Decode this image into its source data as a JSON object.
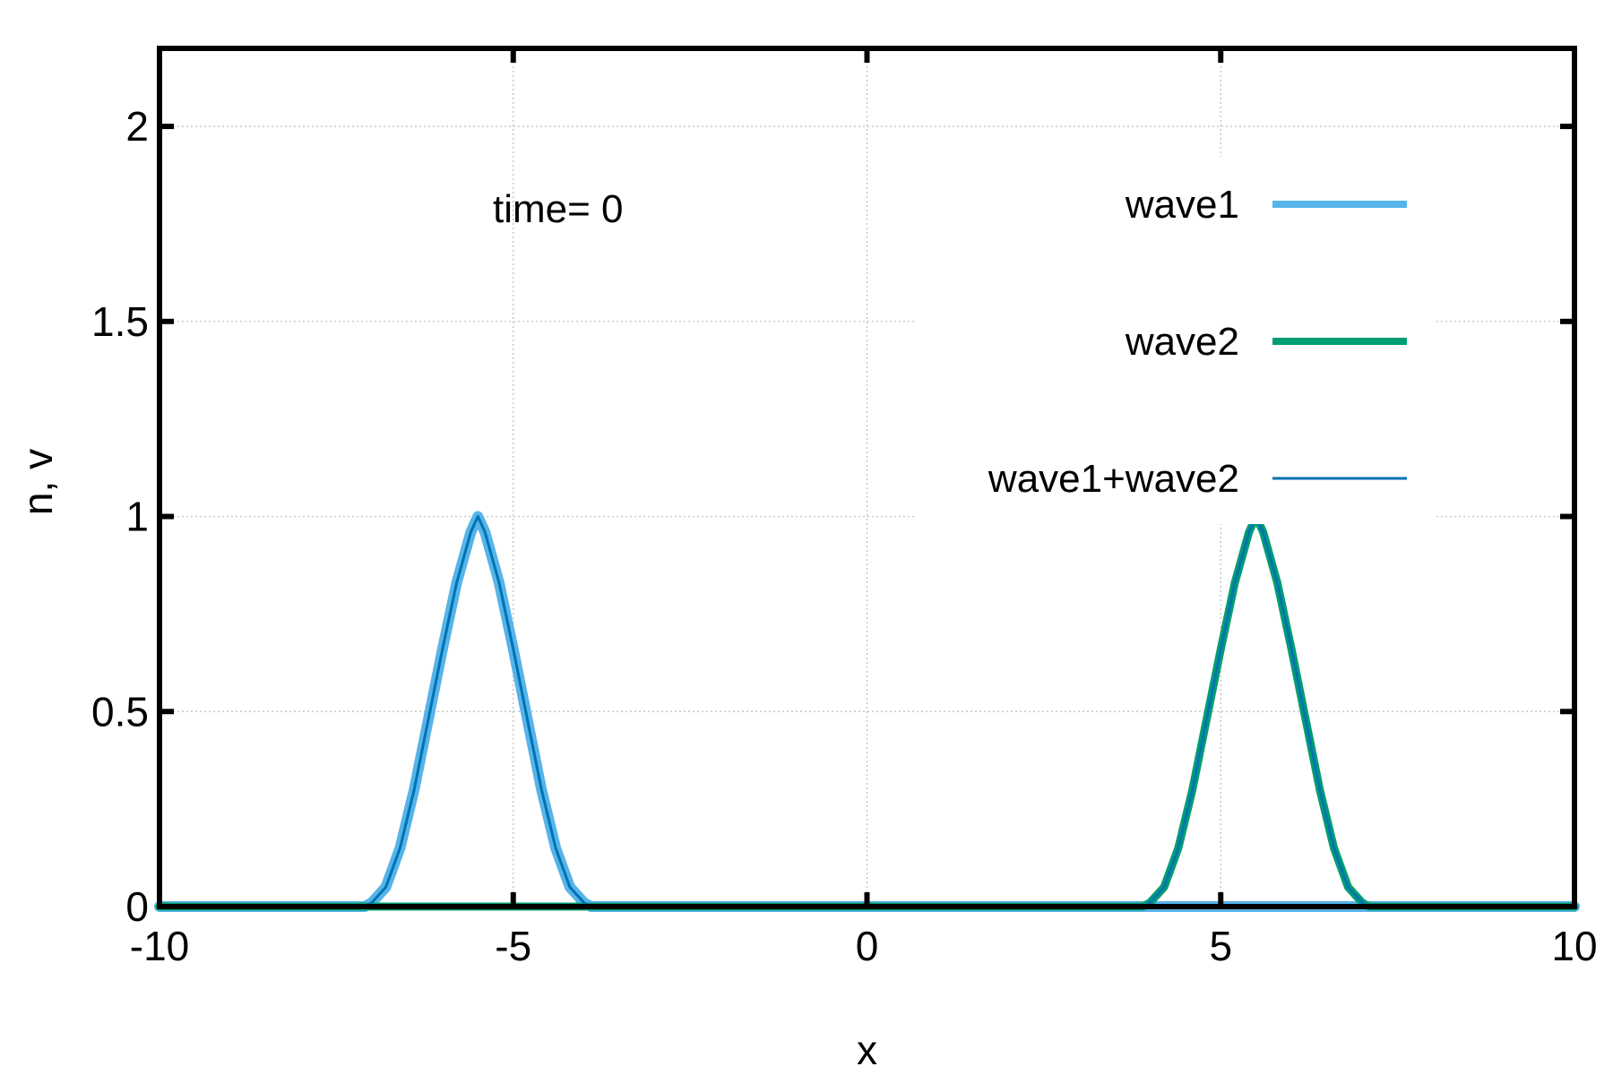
{
  "chart_data": {
    "type": "line",
    "xlabel": "x",
    "ylabel": "n, v",
    "xlim": [
      -10,
      10
    ],
    "ylim": [
      0,
      2.2
    ],
    "xticks": [
      -10,
      -5,
      0,
      5,
      10
    ],
    "yticks": [
      0,
      0.5,
      1,
      1.5,
      2
    ],
    "xtick_labels": [
      "-10",
      "-5",
      "0",
      "5",
      "10"
    ],
    "ytick_labels": [
      "0",
      "0.5",
      "1",
      "1.5",
      "2"
    ],
    "grid": true,
    "legend_position": "top-right",
    "annotation": "time=  0",
    "series": [
      {
        "name": "wave1",
        "color": "#56b4e9",
        "x": [
          -10,
          -7.1,
          -7.0,
          -6.8,
          -6.6,
          -6.4,
          -6.2,
          -6.0,
          -5.8,
          -5.6,
          -5.5,
          -5.4,
          -5.2,
          -5.0,
          -4.8,
          -4.6,
          -4.4,
          -4.2,
          -4.0,
          -3.9,
          10
        ],
        "y": [
          0,
          0,
          0.01,
          0.05,
          0.15,
          0.3,
          0.48,
          0.66,
          0.83,
          0.96,
          1.0,
          0.96,
          0.83,
          0.66,
          0.48,
          0.3,
          0.15,
          0.05,
          0.01,
          0,
          0
        ]
      },
      {
        "name": "wave2",
        "color": "#009e73",
        "x": [
          -10,
          3.9,
          4.0,
          4.2,
          4.4,
          4.6,
          4.8,
          5.0,
          5.2,
          5.4,
          5.5,
          5.6,
          5.8,
          6.0,
          6.2,
          6.4,
          6.6,
          6.8,
          7.0,
          7.1,
          10
        ],
        "y": [
          0,
          0,
          0.01,
          0.05,
          0.15,
          0.3,
          0.48,
          0.66,
          0.83,
          0.96,
          1.0,
          0.96,
          0.83,
          0.66,
          0.48,
          0.3,
          0.15,
          0.05,
          0.01,
          0,
          0
        ]
      },
      {
        "name": "wave1+wave2",
        "color": "#0072b2",
        "x": [
          -10,
          -7.1,
          -7.0,
          -6.8,
          -6.6,
          -6.4,
          -6.2,
          -6.0,
          -5.8,
          -5.6,
          -5.5,
          -5.4,
          -5.2,
          -5.0,
          -4.8,
          -4.6,
          -4.4,
          -4.2,
          -4.0,
          -3.9,
          3.9,
          4.0,
          4.2,
          4.4,
          4.6,
          4.8,
          5.0,
          5.2,
          5.4,
          5.5,
          5.6,
          5.8,
          6.0,
          6.2,
          6.4,
          6.6,
          6.8,
          7.0,
          7.1,
          10
        ],
        "y": [
          0,
          0,
          0.01,
          0.05,
          0.15,
          0.3,
          0.48,
          0.66,
          0.83,
          0.96,
          1.0,
          0.96,
          0.83,
          0.66,
          0.48,
          0.3,
          0.15,
          0.05,
          0.01,
          0,
          0,
          0.01,
          0.05,
          0.15,
          0.3,
          0.48,
          0.66,
          0.83,
          0.96,
          1.0,
          0.96,
          0.83,
          0.66,
          0.48,
          0.3,
          0.15,
          0.05,
          0.01,
          0,
          0
        ]
      }
    ]
  }
}
